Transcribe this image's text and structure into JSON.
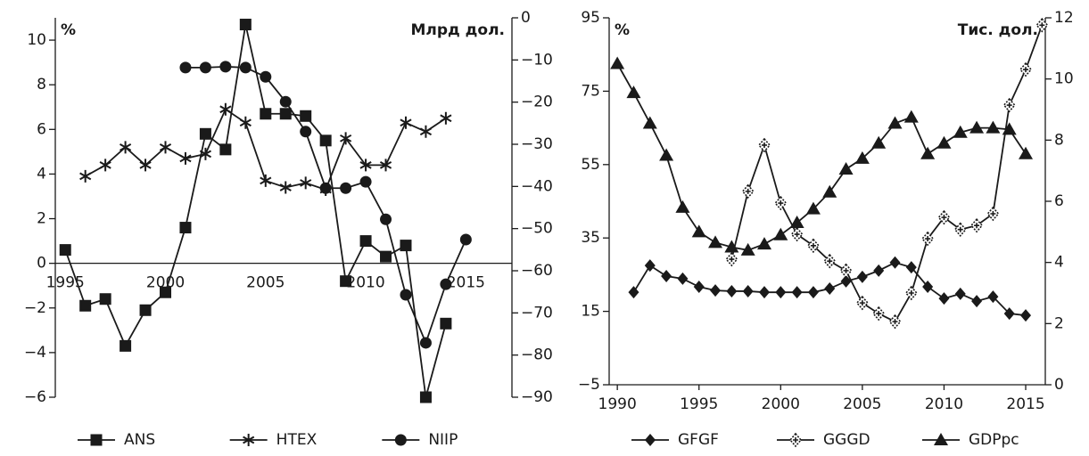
{
  "chart_data": [
    {
      "type": "line",
      "y_label": "%",
      "y2_label": "Млрд дол.",
      "x_axis_position": "zero",
      "x": [
        1995,
        1996,
        1997,
        1998,
        1999,
        2000,
        2001,
        2002,
        2003,
        2004,
        2005,
        2006,
        2007,
        2008,
        2009,
        2010,
        2011,
        2012,
        2013,
        2014,
        2015
      ],
      "xlim": [
        1994.5,
        2017.3
      ],
      "xticks": [
        1995,
        2000,
        2005,
        2010,
        2015
      ],
      "ylim": [
        -6,
        11
      ],
      "yticks": [
        {
          "value": -6,
          "label": "−6"
        },
        {
          "value": -4,
          "label": "−4"
        },
        {
          "value": -2,
          "label": "−2"
        },
        0,
        2,
        4,
        6,
        8,
        10
      ],
      "y2lim": [
        -90,
        0
      ],
      "y2ticks": [
        {
          "value": -90,
          "label": "−90"
        },
        {
          "value": -80,
          "label": "−80"
        },
        {
          "value": -70,
          "label": "−70"
        },
        {
          "value": -60,
          "label": "−60"
        },
        {
          "value": -50,
          "label": "−50"
        },
        {
          "value": -40,
          "label": "−40"
        },
        {
          "value": -30,
          "label": "−30"
        },
        {
          "value": -20,
          "label": "−20"
        },
        {
          "value": -10,
          "label": "−10"
        },
        0
      ],
      "series": [
        {
          "name": "ANS",
          "color": "#1a1a1a",
          "marker": "square",
          "axis": "y",
          "values": [
            0.6,
            -1.9,
            -1.6,
            -3.7,
            -2.1,
            -1.3,
            1.6,
            5.8,
            5.1,
            10.7,
            6.7,
            6.7,
            6.6,
            5.5,
            -0.8,
            1.0,
            0.3,
            0.8,
            -6.0,
            -2.7,
            null
          ]
        },
        {
          "name": "HTEX",
          "color": "#1a1a1a",
          "marker": "star",
          "axis": "y",
          "values": [
            null,
            3.9,
            4.4,
            5.2,
            4.4,
            5.2,
            4.7,
            4.9,
            6.9,
            6.3,
            3.7,
            3.4,
            3.6,
            3.3,
            5.6,
            4.4,
            4.4,
            6.3,
            5.9,
            6.5,
            null
          ]
        },
        {
          "name": "NIIP",
          "color": "#1a1a1a",
          "marker": "circle",
          "axis": "y2",
          "values": [
            null,
            null,
            null,
            null,
            null,
            null,
            -11.8,
            -11.8,
            -11.6,
            -11.8,
            -14,
            -19.9,
            -27,
            -40.4,
            -40.4,
            -38.9,
            -47.8,
            -65.7,
            -77.1,
            -63.2,
            -52.6
          ]
        }
      ]
    },
    {
      "type": "line",
      "y_label": "%",
      "y2_label": "Тис. дол.",
      "x_axis_position": "bottom",
      "x": [
        1990,
        1991,
        1992,
        1993,
        1994,
        1995,
        1996,
        1997,
        1998,
        1999,
        2000,
        2001,
        2002,
        2003,
        2004,
        2005,
        2006,
        2007,
        2008,
        2009,
        2010,
        2011,
        2012,
        2013,
        2014,
        2015,
        2016
      ],
      "xlim": [
        1989.5,
        2016.2
      ],
      "xticks": [
        1990,
        1995,
        2000,
        2005,
        2010,
        2015
      ],
      "ylim": [
        -5,
        95
      ],
      "yticks": [
        {
          "value": -5,
          "label": "−5"
        },
        15,
        35,
        55,
        75,
        95
      ],
      "y2lim": [
        0,
        12
      ],
      "y2ticks": [
        0,
        2,
        4,
        6,
        8,
        10,
        12
      ],
      "series": [
        {
          "name": "GFGF",
          "color": "#1a1a1a",
          "marker": "diamond",
          "axis": "y",
          "values": [
            null,
            20.2,
            27.5,
            24.6,
            23.9,
            21.7,
            20.7,
            20.5,
            20.5,
            20.2,
            20.2,
            20.2,
            20.2,
            21.2,
            23.2,
            24.4,
            26.1,
            28.3,
            27.0,
            21.7,
            18.5,
            19.8,
            17.8,
            19.0,
            14.4,
            13.9,
            null
          ]
        },
        {
          "name": "GGGD",
          "color": "#1a1a1a",
          "marker": "crossed-diamond",
          "axis": "y",
          "values": [
            null,
            null,
            null,
            null,
            null,
            null,
            null,
            29.2,
            47.7,
            60.3,
            44.5,
            36.0,
            32.9,
            28.7,
            26.1,
            17.3,
            14.4,
            12.2,
            20.0,
            34.8,
            40.6,
            37.3,
            38.4,
            41.6,
            71.2,
            80.9,
            93.0
          ]
        },
        {
          "name": "GDPpc",
          "color": "#1a1a1a",
          "marker": "triangle",
          "axis": "y2",
          "values": [
            10.5,
            9.55,
            8.55,
            7.5,
            5.8,
            5.0,
            4.65,
            4.5,
            4.4,
            4.6,
            4.9,
            5.3,
            5.75,
            6.3,
            7.05,
            7.4,
            7.9,
            8.55,
            8.75,
            7.55,
            7.9,
            8.25,
            8.4,
            8.4,
            8.35,
            7.55,
            null
          ]
        }
      ]
    }
  ]
}
